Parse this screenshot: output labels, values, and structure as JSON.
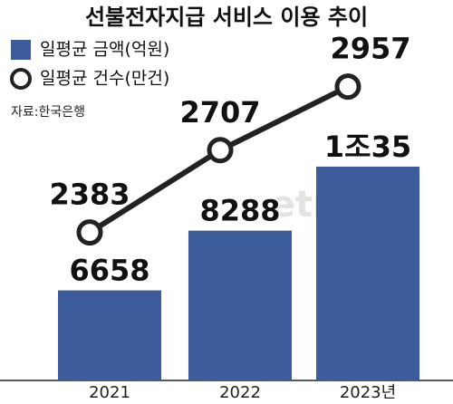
{
  "chart_data": {
    "type": "bar-line",
    "title": "선불전자지급 서비스 이용 추이",
    "source": "자료:한국은행",
    "watermark": "etnews",
    "categories": [
      "2021",
      "2022",
      "2023년"
    ],
    "series": [
      {
        "name": "일평균 금액(억원)",
        "type": "bar",
        "color": "#3d5c9c",
        "values": [
          6658,
          8288,
          10035
        ],
        "value_labels": [
          "6658",
          "8288",
          "1조35"
        ]
      },
      {
        "name": "일평균 건수(만건)",
        "type": "line",
        "axis": "y2",
        "color": "#222222",
        "values": [
          2383,
          2707,
          2957
        ]
      }
    ],
    "ylim": [
      4200,
      13000
    ],
    "y2lim": [
      1800,
      3070
    ]
  }
}
